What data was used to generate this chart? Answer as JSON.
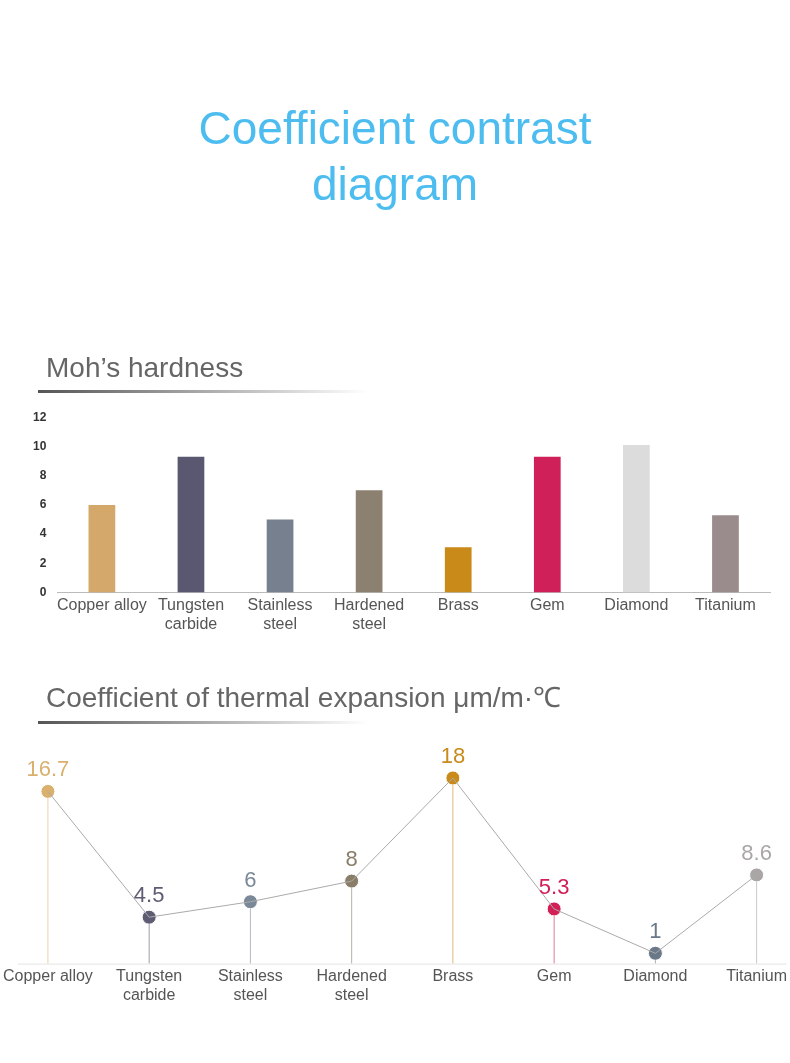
{
  "chart_data": [
    {
      "type": "bar",
      "title": "Coefficient contrast diagram",
      "subtitle": "Moh’s hardness",
      "categories": [
        "Copper alloy",
        "Tungsten carbide",
        "Stainless steel",
        "Hardened steel",
        "Brass",
        "Gem",
        "Diamond",
        "Titanium"
      ],
      "values": [
        6,
        9.3,
        5,
        7,
        3.1,
        9.3,
        10.1,
        5.3
      ],
      "colors": [
        "#d4a76a",
        "#5a5870",
        "#76808e",
        "#8c8070",
        "#c98a1a",
        "#d0205a",
        "#dcdcdc",
        "#9a8c8c"
      ],
      "ylim": [
        0,
        12
      ],
      "yticks": [
        0,
        2,
        4,
        6,
        8,
        10,
        12
      ],
      "grid": false,
      "legend": false
    },
    {
      "type": "lollipop",
      "title": "Coefficient of thermal expansion μm/m·℃",
      "categories": [
        "Copper alloy",
        "Tungsten carbide",
        "Stainless steel",
        "Hardened steel",
        "Brass",
        "Gem",
        "Diamond",
        "Titanium"
      ],
      "series": [
        {
          "type": "line",
          "marker": "none",
          "color": "#aaaaaa",
          "values": [
            16.7,
            4.5,
            6,
            8,
            18,
            5.3,
            1,
            8.6
          ]
        },
        {
          "marker": "circle",
          "colors": [
            "#d9b06e",
            "#5e5c72",
            "#7a8898",
            "#8a7e68",
            "#c98a1a",
            "#d21f55",
            "#6a7888",
            "#aaa6a6"
          ],
          "values": [
            16.7,
            4.5,
            6,
            8,
            18,
            5.3,
            1,
            8.6
          ],
          "value_labels": [
            "16.7",
            "4.5",
            "6",
            "8",
            "18",
            "5.3",
            "1",
            "8.6"
          ]
        }
      ],
      "grid": false,
      "legend": false
    }
  ]
}
